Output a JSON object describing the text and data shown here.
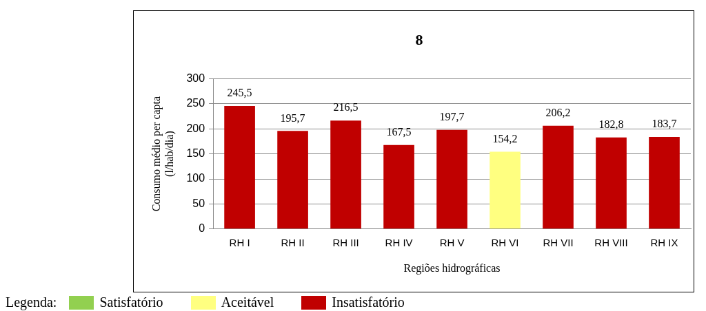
{
  "chart_data": {
    "type": "bar",
    "title": "8",
    "xlabel": "Regiões hidrográficas",
    "ylabel": "Consumo médio per capta\n(l/hab/dia)",
    "legend_title": "Legenda:",
    "categories": [
      "RH I",
      "RH II",
      "RH III",
      "RH IV",
      "RH V",
      "RH VI",
      "RH VII",
      "RH VIII",
      "RH IX"
    ],
    "stacked": true,
    "series": [
      {
        "name": "Satisfatório",
        "color": "#92d050",
        "values": [
          null,
          null,
          null,
          null,
          null,
          null,
          null,
          null,
          null
        ],
        "value_labels": [
          null,
          null,
          null,
          null,
          null,
          null,
          null,
          null,
          null
        ]
      },
      {
        "name": "Aceitável",
        "color": "#ffff80",
        "values": [
          null,
          null,
          null,
          null,
          null,
          154.2,
          null,
          null,
          null
        ],
        "value_labels": [
          null,
          null,
          null,
          null,
          null,
          "154,2",
          null,
          null,
          null
        ]
      },
      {
        "name": "Insatisfatório",
        "color": "#c00000",
        "values": [
          245.5,
          195.7,
          216.5,
          167.5,
          197.7,
          null,
          206.2,
          182.8,
          183.7
        ],
        "value_labels": [
          "245,5",
          "195,7",
          "216,5",
          "167,5",
          "197,7",
          null,
          "206,2",
          "182,8",
          "183,7"
        ]
      }
    ],
    "ylim": [
      0,
      300
    ],
    "yticks": [
      0,
      50,
      100,
      150,
      200,
      250,
      300
    ],
    "grid": "y",
    "legend": "bottom left"
  }
}
